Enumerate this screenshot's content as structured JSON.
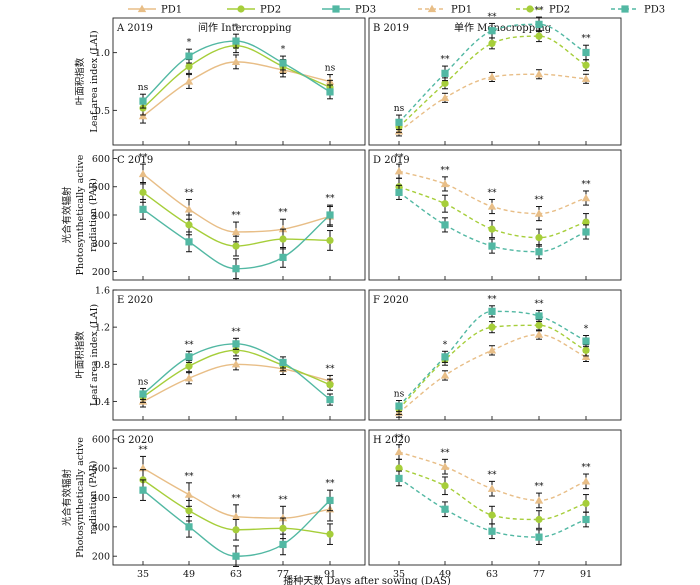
{
  "legend": [
    {
      "name": "PD1",
      "color": "#e8be87",
      "style": "solid",
      "marker": "triangle"
    },
    {
      "name": "PD2",
      "color": "#a6ce3a",
      "style": "solid",
      "marker": "circle"
    },
    {
      "name": "PD3",
      "color": "#52b8a3",
      "style": "solid",
      "marker": "square"
    },
    {
      "name": "PD1",
      "color": "#e8be87",
      "style": "dashed",
      "marker": "triangle"
    },
    {
      "name": "PD2",
      "color": "#a6ce3a",
      "style": "dashed",
      "marker": "circle"
    },
    {
      "name": "PD3",
      "color": "#52b8a3",
      "style": "dashed",
      "marker": "square"
    }
  ],
  "xlabel": "播种天数 Days after sowing (DAS)",
  "ylabels": {
    "lai": [
      "叶面积指数",
      "Leaf area index (LAI)"
    ],
    "par": [
      "光合有效辐射",
      "Photosynthetically active",
      "radiation (PAR)"
    ]
  },
  "x_ticks": [
    35,
    49,
    63,
    77,
    91
  ],
  "chart_data": [
    {
      "type": "line",
      "panel": "A 2019",
      "header": "间作 Intercropping",
      "metric": "lai",
      "ylim": [
        0.2,
        1.3
      ],
      "yticks": [
        0.5,
        1.0
      ],
      "ytick_labels": [
        "0.5",
        "1.0"
      ],
      "x": [
        35,
        49,
        63,
        77,
        91
      ],
      "series": [
        {
          "name": "PD1",
          "values": [
            0.45,
            0.75,
            0.92,
            0.85,
            0.75
          ],
          "err": 0.06
        },
        {
          "name": "PD2",
          "values": [
            0.52,
            0.88,
            1.06,
            0.88,
            0.7
          ],
          "err": 0.06
        },
        {
          "name": "PD3",
          "values": [
            0.58,
            0.97,
            1.1,
            0.91,
            0.66
          ],
          "err": 0.06
        }
      ],
      "sig": [
        {
          "x": 35,
          "label": "ns"
        },
        {
          "x": 49,
          "label": "*"
        },
        {
          "x": 63,
          "label": "*"
        },
        {
          "x": 77,
          "label": "*"
        },
        {
          "x": 91,
          "label": "ns"
        }
      ]
    },
    {
      "type": "line",
      "panel": "B 2019",
      "header": "单作 Monocropping",
      "metric": "lai",
      "ylim": [
        0.2,
        1.6
      ],
      "yticks": [],
      "ytick_labels": [],
      "x": [
        35,
        49,
        63,
        77,
        91
      ],
      "series": [
        {
          "name": "PD1",
          "values": [
            0.35,
            0.72,
            0.95,
            0.98,
            0.93
          ],
          "err": 0.05
        },
        {
          "name": "PD2",
          "values": [
            0.4,
            0.88,
            1.32,
            1.4,
            1.08
          ],
          "err": 0.06
        },
        {
          "name": "PD3",
          "values": [
            0.45,
            0.99,
            1.46,
            1.53,
            1.22
          ],
          "err": 0.08
        }
      ],
      "sig": [
        {
          "x": 35,
          "label": "ns"
        },
        {
          "x": 49,
          "label": "**"
        },
        {
          "x": 63,
          "label": "**"
        },
        {
          "x": 77,
          "label": "**"
        },
        {
          "x": 91,
          "label": "**"
        }
      ]
    },
    {
      "type": "line",
      "panel": "C 2019",
      "header": "",
      "metric": "par",
      "ylim": [
        170,
        630
      ],
      "yticks": [
        200,
        300,
        400,
        500,
        600
      ],
      "ytick_labels": [
        "200",
        "300",
        "400",
        "500",
        "600"
      ],
      "x": [
        35,
        49,
        63,
        77,
        91
      ],
      "series": [
        {
          "name": "PD1",
          "values": [
            545,
            420,
            340,
            350,
            395
          ],
          "err": 35
        },
        {
          "name": "PD2",
          "values": [
            480,
            365,
            290,
            315,
            310
          ],
          "err": 35
        },
        {
          "name": "PD3",
          "values": [
            420,
            305,
            210,
            250,
            400
          ],
          "err": 35
        }
      ],
      "sig": [
        {
          "x": 35,
          "label": "**"
        },
        {
          "x": 49,
          "label": "**"
        },
        {
          "x": 63,
          "label": "**"
        },
        {
          "x": 77,
          "label": "**"
        },
        {
          "x": 91,
          "label": "**"
        }
      ]
    },
    {
      "type": "line",
      "panel": "D 2019",
      "header": "",
      "metric": "par",
      "ylim": [
        170,
        630
      ],
      "yticks": [],
      "ytick_labels": [],
      "x": [
        35,
        49,
        63,
        77,
        91
      ],
      "series": [
        {
          "name": "PD1",
          "values": [
            555,
            510,
            430,
            405,
            460
          ],
          "err": 25
        },
        {
          "name": "PD2",
          "values": [
            500,
            440,
            350,
            320,
            375
          ],
          "err": 30
        },
        {
          "name": "PD3",
          "values": [
            480,
            365,
            290,
            270,
            340
          ],
          "err": 25
        }
      ],
      "sig": [
        {
          "x": 35,
          "label": "**"
        },
        {
          "x": 49,
          "label": "**"
        },
        {
          "x": 63,
          "label": "**"
        },
        {
          "x": 77,
          "label": "**"
        },
        {
          "x": 91,
          "label": "**"
        }
      ]
    },
    {
      "type": "line",
      "panel": "E 2020",
      "header": "",
      "metric": "lai",
      "ylim": [
        0.2,
        1.6
      ],
      "yticks": [
        0.4,
        0.8,
        1.2,
        1.6
      ],
      "ytick_labels": [
        "0.4",
        "0.8",
        "1.2",
        "1.6"
      ],
      "x": [
        35,
        49,
        63,
        77,
        91
      ],
      "series": [
        {
          "name": "PD1",
          "values": [
            0.4,
            0.65,
            0.8,
            0.75,
            0.62
          ],
          "err": 0.06
        },
        {
          "name": "PD2",
          "values": [
            0.45,
            0.78,
            0.95,
            0.79,
            0.58
          ],
          "err": 0.06
        },
        {
          "name": "PD3",
          "values": [
            0.48,
            0.88,
            1.02,
            0.82,
            0.42
          ],
          "err": 0.06
        }
      ],
      "sig": [
        {
          "x": 35,
          "label": "ns"
        },
        {
          "x": 49,
          "label": "**"
        },
        {
          "x": 63,
          "label": "**"
        },
        {
          "x": 77,
          "label": ""
        },
        {
          "x": 91,
          "label": "**"
        }
      ]
    },
    {
      "type": "line",
      "panel": "F 2020",
      "header": "",
      "metric": "lai",
      "ylim": [
        0.2,
        1.6
      ],
      "yticks": [],
      "ytick_labels": [],
      "x": [
        35,
        49,
        63,
        77,
        91
      ],
      "series": [
        {
          "name": "PD1",
          "values": [
            0.28,
            0.68,
            0.95,
            1.12,
            0.88
          ],
          "err": 0.05
        },
        {
          "name": "PD2",
          "values": [
            0.32,
            0.85,
            1.2,
            1.22,
            0.95
          ],
          "err": 0.06
        },
        {
          "name": "PD3",
          "values": [
            0.35,
            0.88,
            1.37,
            1.32,
            1.05
          ],
          "err": 0.06
        }
      ],
      "sig": [
        {
          "x": 35,
          "label": "ns"
        },
        {
          "x": 49,
          "label": "*"
        },
        {
          "x": 63,
          "label": "**"
        },
        {
          "x": 77,
          "label": "**"
        },
        {
          "x": 91,
          "label": "*"
        }
      ]
    },
    {
      "type": "line",
      "panel": "G 2020",
      "header": "",
      "metric": "par",
      "ylim": [
        170,
        630
      ],
      "yticks": [
        200,
        300,
        400,
        500,
        600
      ],
      "ytick_labels": [
        "200",
        "300",
        "400",
        "500",
        "600"
      ],
      "x": [
        35,
        49,
        63,
        77,
        91
      ],
      "series": [
        {
          "name": "PD1",
          "values": [
            500,
            410,
            335,
            330,
            360
          ],
          "err": 40
        },
        {
          "name": "PD2",
          "values": [
            460,
            355,
            290,
            295,
            275
          ],
          "err": 35
        },
        {
          "name": "PD3",
          "values": [
            425,
            300,
            200,
            240,
            390
          ],
          "err": 35
        }
      ],
      "sig": [
        {
          "x": 35,
          "label": "**"
        },
        {
          "x": 49,
          "label": "**"
        },
        {
          "x": 63,
          "label": "**"
        },
        {
          "x": 77,
          "label": "**"
        },
        {
          "x": 91,
          "label": "**"
        }
      ]
    },
    {
      "type": "line",
      "panel": "H 2020",
      "header": "",
      "metric": "par",
      "ylim": [
        170,
        630
      ],
      "yticks": [],
      "ytick_labels": [],
      "x": [
        35,
        49,
        63,
        77,
        91
      ],
      "series": [
        {
          "name": "PD1",
          "values": [
            555,
            505,
            430,
            390,
            455
          ],
          "err": 25
        },
        {
          "name": "PD2",
          "values": [
            500,
            440,
            340,
            325,
            380
          ],
          "err": 30
        },
        {
          "name": "PD3",
          "values": [
            465,
            360,
            285,
            265,
            325
          ],
          "err": 25
        }
      ],
      "sig": [
        {
          "x": 35,
          "label": "**"
        },
        {
          "x": 49,
          "label": "**"
        },
        {
          "x": 63,
          "label": "**"
        },
        {
          "x": 77,
          "label": "**"
        },
        {
          "x": 91,
          "label": "**"
        }
      ]
    }
  ]
}
